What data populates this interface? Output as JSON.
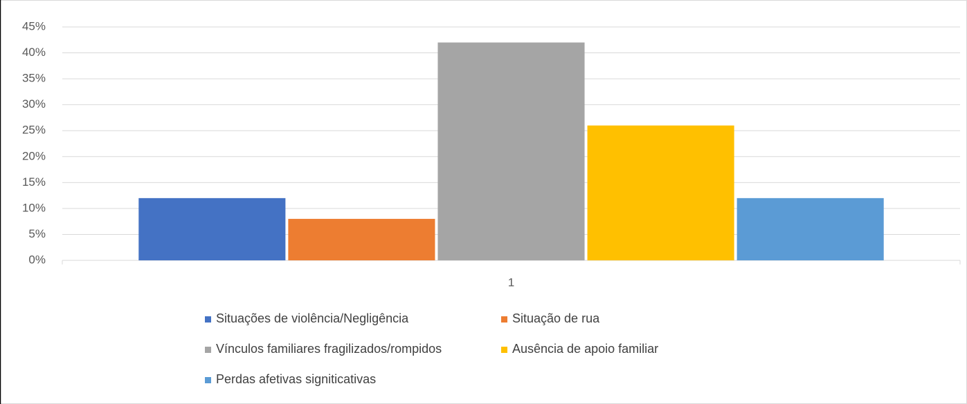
{
  "chart_data": {
    "type": "bar",
    "categories": [
      "1"
    ],
    "series": [
      {
        "name": "Situações de violência/Negligência",
        "color": "#4472c4",
        "values": [
          12
        ]
      },
      {
        "name": "Situação de rua",
        "color": "#ed7d31",
        "values": [
          8
        ]
      },
      {
        "name": "Vínculos familiares fragilizados/rompidos",
        "color": "#a5a5a5",
        "values": [
          42
        ]
      },
      {
        "name": "Ausência de apoio familiar",
        "color": "#ffc000",
        "values": [
          26
        ]
      },
      {
        "name": "Perdas afetivas signiticativas",
        "color": "#5b9bd5",
        "values": [
          12
        ]
      }
    ],
    "ylim": [
      0,
      45
    ],
    "yticks": [
      {
        "value": 0,
        "label": "0%"
      },
      {
        "value": 5,
        "label": "5%"
      },
      {
        "value": 10,
        "label": "10%"
      },
      {
        "value": 15,
        "label": "15%"
      },
      {
        "value": 20,
        "label": "20%"
      },
      {
        "value": 25,
        "label": "25%"
      },
      {
        "value": 30,
        "label": "30%"
      },
      {
        "value": 35,
        "label": "35%"
      },
      {
        "value": 40,
        "label": "40%"
      },
      {
        "value": 45,
        "label": "45%"
      }
    ],
    "grid": true,
    "legend": "bottom"
  }
}
